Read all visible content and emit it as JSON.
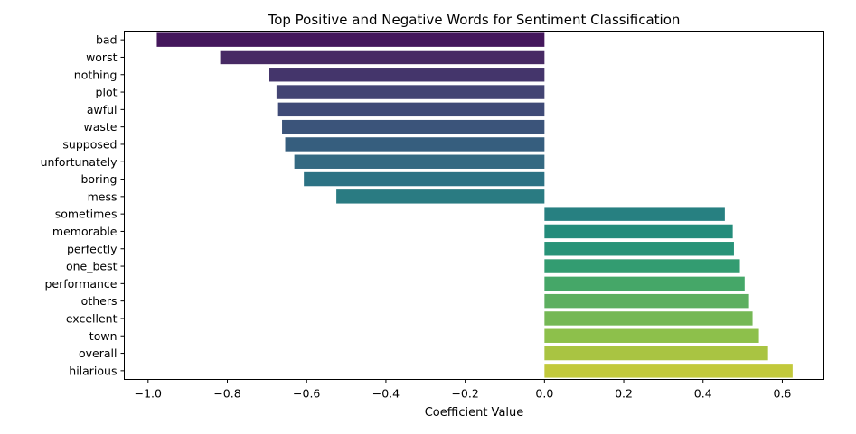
{
  "chart_data": {
    "type": "bar",
    "orientation": "horizontal",
    "title": "Top Positive and Negative Words for Sentiment Classification",
    "xlabel": "Coefficient Value",
    "ylabel": "",
    "xlim": [
      -1.06,
      0.705
    ],
    "xticks": [
      -1.0,
      -0.8,
      -0.6,
      -0.4,
      -0.2,
      0.0,
      0.2,
      0.4,
      0.6
    ],
    "xtick_labels": [
      "−1.0",
      "−0.8",
      "−0.6",
      "−0.4",
      "−0.2",
      "0.0",
      "0.2",
      "0.4",
      "0.6"
    ],
    "grid": false,
    "legend": "none",
    "palette": "viridis",
    "categories": [
      "bad",
      "worst",
      "nothing",
      "plot",
      "awful",
      "waste",
      "supposed",
      "unfortunately",
      "boring",
      "mess",
      "sometimes",
      "memorable",
      "perfectly",
      "one_best",
      "performance",
      "others",
      "excellent",
      "town",
      "overall",
      "hilarious"
    ],
    "values": [
      -0.978,
      -0.818,
      -0.694,
      -0.676,
      -0.672,
      -0.662,
      -0.654,
      -0.631,
      -0.607,
      -0.525,
      0.455,
      0.475,
      0.478,
      0.493,
      0.505,
      0.516,
      0.525,
      0.541,
      0.564,
      0.626
    ],
    "colors": [
      "#44175c",
      "#472a64",
      "#44356b",
      "#434473",
      "#3f4a77",
      "#3b547a",
      "#365e7e",
      "#346982",
      "#2c7284",
      "#2a7b82",
      "#278081",
      "#248c7b",
      "#289378",
      "#339c71",
      "#45a768",
      "#5daf60",
      "#75b855",
      "#8dc04b",
      "#a9c442",
      "#c2c93b"
    ]
  }
}
